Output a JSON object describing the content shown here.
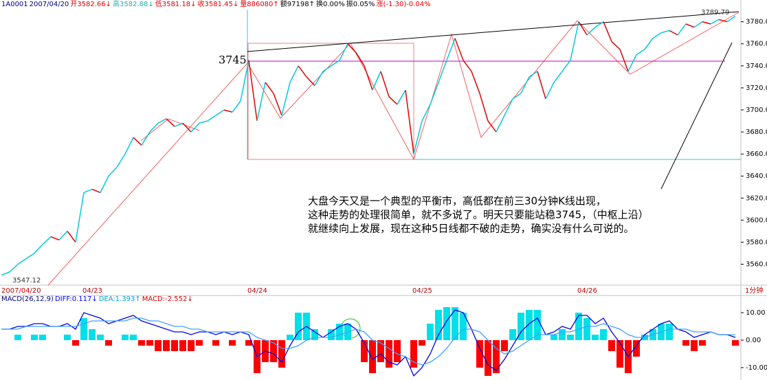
{
  "chart_data": [
    {
      "type": "line",
      "header": [
        {
          "text": "1A0001",
          "color": "#000080"
        },
        {
          "text": "2007/04/20",
          "color": "#000080"
        },
        {
          "text": "开3582.66↓",
          "color": "#e00000"
        },
        {
          "text": "高3582.88↓",
          "color": "#20b0b0"
        },
        {
          "text": "低3581.18↓",
          "color": "#e00000"
        },
        {
          "text": "收3581.45↓",
          "color": "#e00000"
        },
        {
          "text": "量886080↑",
          "color": "#e00000"
        },
        {
          "text": "额97198↑",
          "color": "#000000"
        },
        {
          "text": "换0.00%",
          "color": "#000000"
        },
        {
          "text": "振0.05%",
          "color": "#000000"
        },
        {
          "text": "涨(-1.30)-0.04%",
          "color": "#e00000"
        }
      ],
      "categories": [
        "2007/04/20",
        null,
        null,
        null,
        null,
        null,
        null,
        null,
        null,
        null,
        "04/23",
        null,
        null,
        null,
        null,
        null,
        null,
        null,
        null,
        null,
        null,
        null,
        null,
        null,
        null,
        null,
        null,
        null,
        null,
        null,
        "04/24",
        null,
        null,
        null,
        null,
        null,
        null,
        null,
        null,
        null,
        null,
        null,
        null,
        null,
        null,
        null,
        null,
        null,
        null,
        null,
        "04/25",
        null,
        null,
        null,
        null,
        null,
        null,
        null,
        null,
        null,
        null,
        null,
        null,
        null,
        null,
        null,
        null,
        null,
        null,
        null,
        "04/26",
        null,
        null,
        null,
        null,
        null,
        null,
        null,
        null,
        null,
        null,
        null,
        null,
        null,
        null,
        null,
        null,
        null,
        null,
        null
      ],
      "series": [
        {
          "color_up": "#00c8e0",
          "color_down": "#e00000",
          "values": [
            3550,
            3553,
            3560,
            3565,
            3570,
            3578,
            3585,
            3582,
            3590,
            3580,
            3625,
            3628,
            3625,
            3640,
            3648,
            3660,
            3675,
            3668,
            3680,
            3688,
            3692,
            3685,
            3688,
            3680,
            3688,
            3690,
            3695,
            3700,
            3698,
            3708,
            3745,
            3690,
            3725,
            3715,
            3695,
            3725,
            3740,
            3730,
            3722,
            3735,
            3740,
            3745,
            3760,
            3752,
            3740,
            3718,
            3735,
            3712,
            3705,
            3718,
            3660,
            3690,
            3705,
            3725,
            3745,
            3765,
            3745,
            3735,
            3715,
            3690,
            3680,
            3695,
            3710,
            3715,
            3730,
            3735,
            3710,
            3725,
            3735,
            3745,
            3780,
            3768,
            3775,
            3780,
            3762,
            3755,
            3735,
            3750,
            3755,
            3765,
            3770,
            3772,
            3768,
            3778,
            3775,
            3780,
            3778,
            3782,
            3780,
            3785
          ]
        }
      ],
      "ylim": [
        3541,
        3791
      ],
      "yticks": [
        {
          "value": 3560,
          "label": "3560.00"
        },
        {
          "value": 3580,
          "label": "3580.00"
        },
        {
          "value": 3600,
          "label": "3600.00"
        },
        {
          "value": 3620,
          "label": "3620.00"
        },
        {
          "value": 3640,
          "label": "3640.00"
        },
        {
          "value": 3660,
          "label": "3660.00"
        },
        {
          "value": 3680,
          "label": "3680.00"
        },
        {
          "value": 3700,
          "label": "3700.00"
        },
        {
          "value": 3720,
          "label": "3720.00"
        },
        {
          "value": 3740,
          "label": "3740.00"
        },
        {
          "value": 3760,
          "label": "3760.00"
        },
        {
          "value": 3780,
          "label": "3780.00"
        }
      ],
      "x_unit": "1分钟",
      "annotations": [
        "3745",
        "3789.79",
        "3547.12"
      ],
      "comment": [
        "大盘今天又是一个典型的平衡市，高低都在前三30分钟K线出现，",
        "这种走势的处理很简单，就不多说了。明天只要能站稳3745，（中枢上沿）",
        "就继续向上发展，现在这种5日线都不破的走势，确实没有什么可说的。"
      ]
    },
    {
      "type": "bar",
      "header": [
        {
          "text": "MACD(26,12,9)",
          "color": "#000080"
        },
        {
          "text": "DIFF:0.117↓",
          "color": "#0000ff"
        },
        {
          "text": "DEA:1.393↑",
          "color": "#00a0e0"
        },
        {
          "text": "MACD:-2.552↓",
          "color": "#e00000"
        }
      ],
      "values": [
        0,
        0,
        2,
        0,
        2,
        2,
        0,
        0,
        2,
        -2,
        8,
        4,
        2,
        -2,
        0,
        2,
        2,
        -2,
        -2,
        -4,
        -4,
        -4,
        -4,
        -4,
        -2,
        0,
        -2,
        0,
        -2,
        0,
        -2,
        -12,
        -8,
        -8,
        -10,
        2,
        10,
        10,
        4,
        0,
        4,
        6,
        6,
        0,
        -8,
        -12,
        -8,
        -10,
        -8,
        0,
        -10,
        -2,
        6,
        11,
        12,
        12,
        10,
        0,
        -10,
        -13,
        -12,
        -4,
        4,
        10,
        11,
        11,
        0,
        2,
        4,
        2,
        10,
        8,
        2,
        4,
        -4,
        -10,
        -12,
        -6,
        2,
        4,
        6,
        6,
        0,
        -2,
        -4,
        -2,
        0,
        0,
        0,
        -2
      ],
      "up_color": "#00e0e8",
      "down_color": "#ff0000",
      "series": [
        {
          "color": "#0000e0",
          "values": [
            4,
            4,
            5,
            5,
            6,
            6,
            5,
            5,
            6,
            4,
            10,
            9,
            8,
            6,
            7,
            8,
            9,
            7,
            6,
            5,
            4,
            3,
            3,
            2,
            3,
            3,
            2,
            3,
            2,
            3,
            2,
            -6,
            -4,
            -5,
            -8,
            -2,
            3,
            5,
            3,
            1,
            3,
            5,
            6,
            4,
            -1,
            -7,
            -5,
            -8,
            -9,
            -6,
            -13,
            -10,
            -5,
            2,
            7,
            11,
            10,
            4,
            -3,
            -9,
            -11,
            -7,
            -2,
            3,
            6,
            8,
            2,
            3,
            5,
            4,
            9,
            9,
            6,
            8,
            3,
            -1,
            -6,
            -2,
            2,
            4,
            6,
            7,
            4,
            3,
            1,
            2,
            3,
            2,
            2,
            1
          ]
        },
        {
          "color": "#40a0ff",
          "values": [
            4,
            4,
            4,
            5,
            5,
            5,
            5,
            5,
            5,
            5,
            6,
            7,
            7,
            7,
            7,
            7,
            8,
            8,
            7,
            7,
            6,
            5,
            5,
            4,
            4,
            3,
            3,
            3,
            3,
            3,
            3,
            1,
            0,
            -1,
            -3,
            -3,
            -2,
            0,
            1,
            1,
            1,
            2,
            3,
            4,
            3,
            0,
            -1,
            -3,
            -5,
            -6,
            -8,
            -9,
            -8,
            -6,
            -3,
            1,
            4,
            4,
            3,
            0,
            -3,
            -5,
            -4,
            -2,
            0,
            2,
            2,
            2,
            3,
            3,
            4,
            5,
            5,
            6,
            5,
            4,
            2,
            1,
            1,
            2,
            3,
            4,
            4,
            4,
            3,
            3,
            3,
            2,
            2,
            2
          ]
        }
      ],
      "ylim": [
        -14.5,
        13
      ],
      "yticks": [
        {
          "value": -10,
          "label": "-10.00"
        },
        {
          "value": 0,
          "label": "0.00"
        },
        {
          "value": 10,
          "label": "10.00"
        }
      ]
    }
  ]
}
